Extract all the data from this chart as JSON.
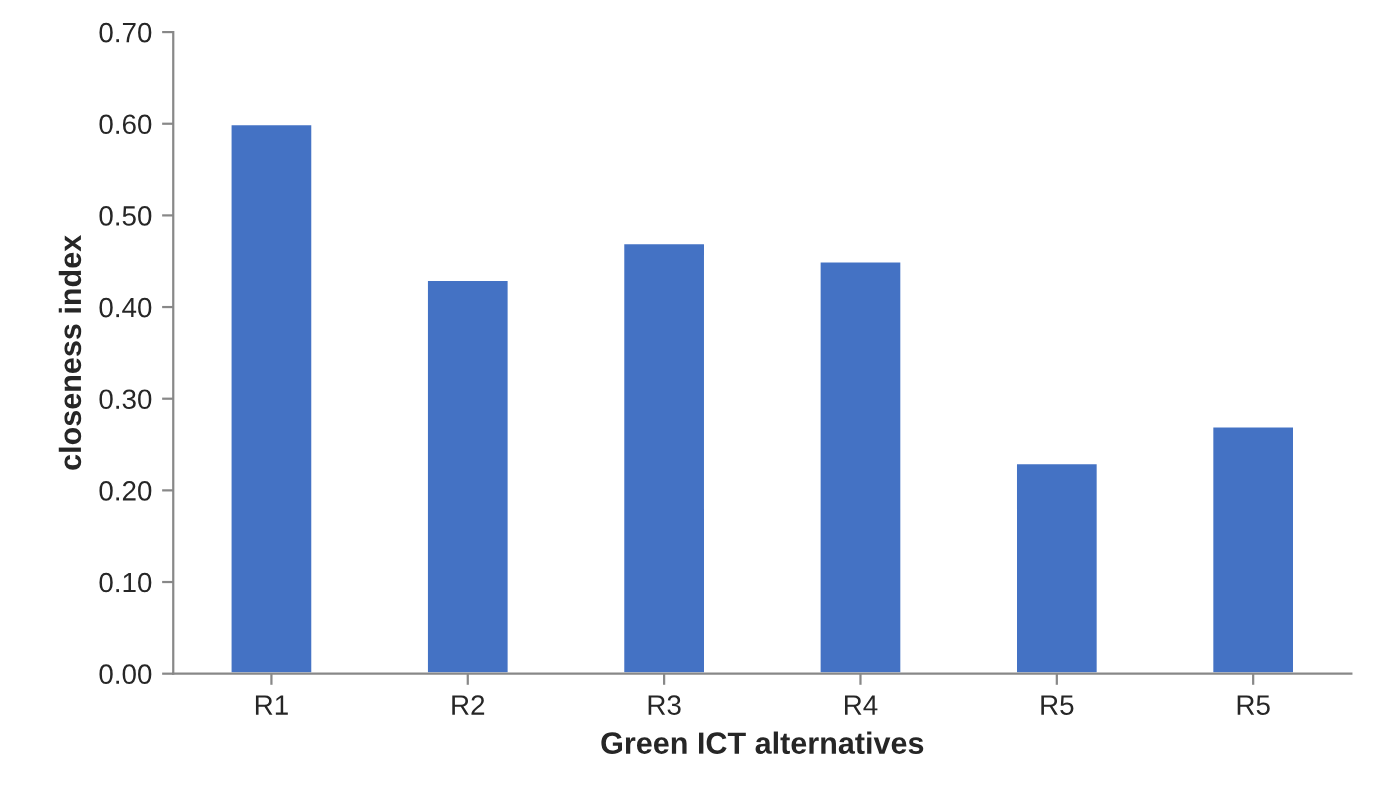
{
  "chart_data": {
    "type": "bar",
    "xlabel": "Green ICT alternatives",
    "ylabel": "closeness index",
    "categories": [
      "R1",
      "R2",
      "R3",
      "R4",
      "R5",
      "R5"
    ],
    "values": [
      0.6,
      0.43,
      0.47,
      0.45,
      0.23,
      0.27
    ],
    "color": "#4472c4",
    "ylim": [
      0,
      0.7
    ],
    "yticks": [
      {
        "value": 0,
        "label": "0.00"
      },
      {
        "value": 0.1,
        "label": "0.10"
      },
      {
        "value": 0.2,
        "label": "0.20"
      },
      {
        "value": 0.3,
        "label": "0.30"
      },
      {
        "value": 0.4,
        "label": "0.40"
      },
      {
        "value": 0.5,
        "label": "0.50"
      },
      {
        "value": 0.6,
        "label": "0.60"
      },
      {
        "value": 0.7,
        "label": "0.70"
      }
    ],
    "grid": false
  }
}
